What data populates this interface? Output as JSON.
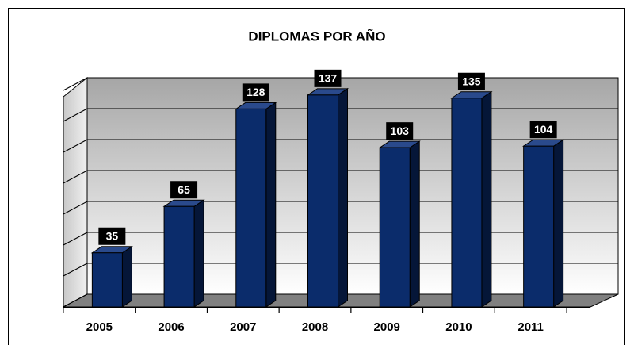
{
  "chart_data": {
    "type": "bar3d",
    "title": "DIPLOMAS POR AÑO",
    "categories": [
      "2005",
      "2006",
      "2007",
      "2008",
      "2009",
      "2010",
      "2011"
    ],
    "values": [
      35,
      65,
      128,
      137,
      103,
      135,
      104
    ],
    "color": "#0b2c6b",
    "ylim": [
      0,
      140
    ],
    "yticks": [
      0,
      20,
      40,
      60,
      80,
      100,
      120,
      140
    ],
    "grid": true
  }
}
